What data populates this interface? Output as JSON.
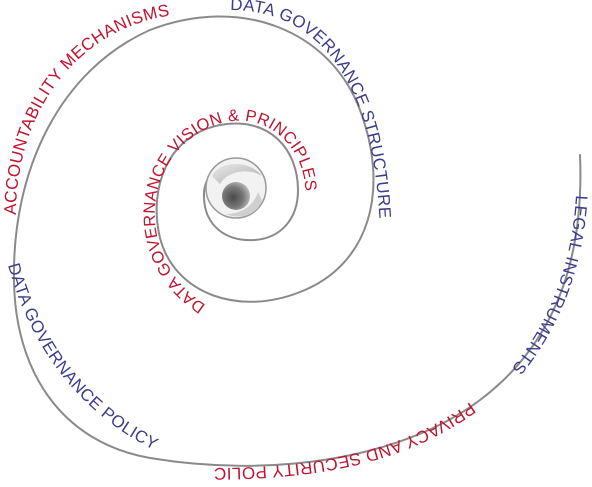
{
  "diagram": {
    "labels": [
      {
        "id": "vision",
        "text": "DATA GOVERNANCE VISION & PRINCIPLES",
        "color": "#c0142f"
      },
      {
        "id": "structure",
        "text": "DATA GOVERNANCE STRUCTURE",
        "color": "#3d3d8f"
      },
      {
        "id": "legal",
        "text": "LEGAL INSTRUMENTS",
        "color": "#3d3d8f"
      },
      {
        "id": "privacy",
        "text": "PRIVACY AND SECURITY POLICY",
        "color": "#c0142f"
      },
      {
        "id": "policy",
        "text": "DATA GOVERNANCE POLICY",
        "color": "#3d3d8f"
      },
      {
        "id": "accountability",
        "text": "ACCOUNTABILITY MECHANISMS",
        "color": "#c0142f"
      }
    ],
    "colors": {
      "spiral": "#8a8a8a",
      "red": "#c0142f",
      "blue": "#3d3d8f"
    }
  }
}
